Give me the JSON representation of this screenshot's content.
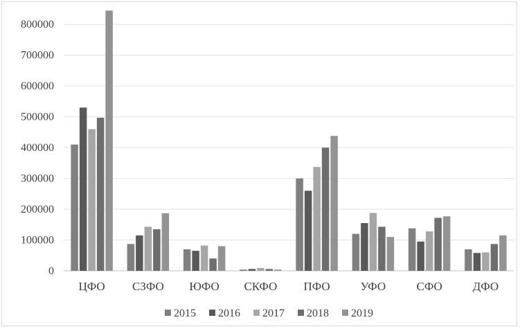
{
  "chart_data": {
    "type": "bar",
    "categories": [
      "ЦФО",
      "СЗФО",
      "ЮФО",
      "СКФО",
      "ПФО",
      "УФО",
      "СФО",
      "ДФО"
    ],
    "series": [
      {
        "name": "2015",
        "color": "#808080",
        "values": [
          410000,
          87000,
          70000,
          4000,
          300000,
          120000,
          138000,
          70000
        ]
      },
      {
        "name": "2016",
        "color": "#595959",
        "values": [
          530000,
          115000,
          65000,
          6000,
          260000,
          155000,
          95000,
          58000
        ]
      },
      {
        "name": "2017",
        "color": "#a6a6a6",
        "values": [
          460000,
          143000,
          82000,
          9000,
          337000,
          188000,
          128000,
          60000
        ]
      },
      {
        "name": "2018",
        "color": "#6e6e6e",
        "values": [
          497000,
          135000,
          40000,
          6000,
          400000,
          143000,
          172000,
          87000
        ]
      },
      {
        "name": "2019",
        "color": "#939393",
        "values": [
          845000,
          187000,
          80000,
          4000,
          438000,
          110000,
          177000,
          115000
        ]
      }
    ],
    "y_ticks": [
      "0",
      "100000",
      "200000",
      "300000",
      "400000",
      "500000",
      "600000",
      "700000",
      "800000"
    ],
    "ylim": [
      0,
      850000
    ],
    "grid": true,
    "legend": "bottom"
  }
}
